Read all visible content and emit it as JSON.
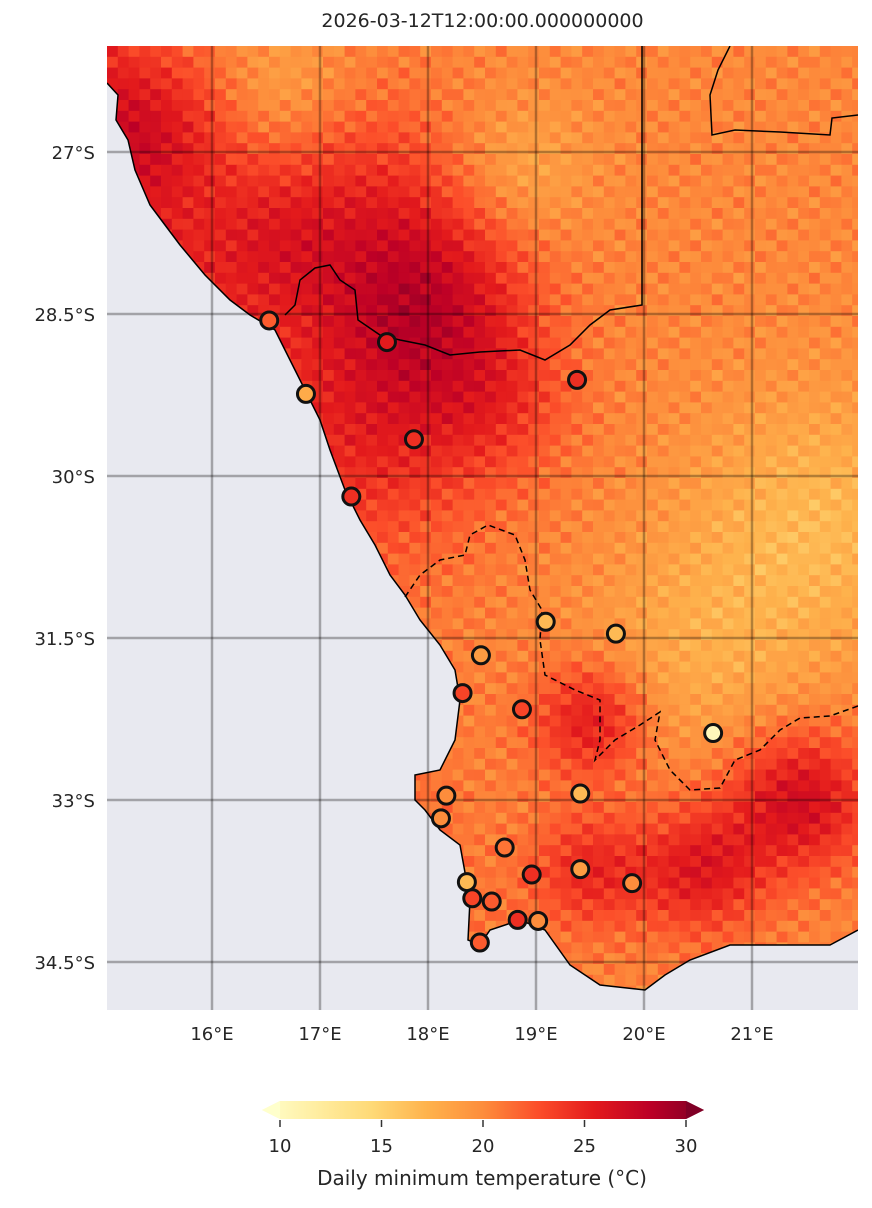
{
  "title": "2026-03-12T12:00:00.000000000",
  "map": {
    "lon_range": [
      15.03,
      21.98
    ],
    "lat_range": [
      -34.95,
      -26.02
    ],
    "x_ticks": [
      {
        "v": 16,
        "label": "16°E"
      },
      {
        "v": 17,
        "label": "17°E"
      },
      {
        "v": 18,
        "label": "18°E"
      },
      {
        "v": 19,
        "label": "19°E"
      },
      {
        "v": 20,
        "label": "20°E"
      },
      {
        "v": 21,
        "label": "21°E"
      }
    ],
    "y_ticks": [
      {
        "v": -27,
        "label": "27°S"
      },
      {
        "v": -28.5,
        "label": "28.5°S"
      },
      {
        "v": -30,
        "label": "30°S"
      },
      {
        "v": -31.5,
        "label": "31.5°S"
      },
      {
        "v": -33,
        "label": "33°S"
      },
      {
        "v": -34.5,
        "label": "34.5°S"
      }
    ],
    "ocean_color": "#e8e9f0",
    "colormap": "YlOrRd",
    "stations": [
      {
        "lon": 16.53,
        "lat": -28.56,
        "value": 22
      },
      {
        "lon": 17.62,
        "lat": -28.76,
        "value": 25
      },
      {
        "lon": 19.38,
        "lat": -29.11,
        "value": 24
      },
      {
        "lon": 16.87,
        "lat": -29.24,
        "value": 18
      },
      {
        "lon": 17.87,
        "lat": -29.66,
        "value": 24
      },
      {
        "lon": 17.29,
        "lat": -30.19,
        "value": 24
      },
      {
        "lon": 19.09,
        "lat": -31.35,
        "value": 17
      },
      {
        "lon": 19.74,
        "lat": -31.46,
        "value": 17
      },
      {
        "lon": 18.49,
        "lat": -31.66,
        "value": 19
      },
      {
        "lon": 18.32,
        "lat": -32.01,
        "value": 23
      },
      {
        "lon": 18.87,
        "lat": -32.16,
        "value": 23
      },
      {
        "lon": 20.64,
        "lat": -32.38,
        "value": 11
      },
      {
        "lon": 19.41,
        "lat": -32.94,
        "value": 17
      },
      {
        "lon": 18.17,
        "lat": -32.96,
        "value": 20
      },
      {
        "lon": 18.12,
        "lat": -33.17,
        "value": 20
      },
      {
        "lon": 18.71,
        "lat": -33.44,
        "value": 21
      },
      {
        "lon": 18.36,
        "lat": -33.76,
        "value": 17
      },
      {
        "lon": 18.96,
        "lat": -33.69,
        "value": 24
      },
      {
        "lon": 19.41,
        "lat": -33.64,
        "value": 19
      },
      {
        "lon": 19.89,
        "lat": -33.77,
        "value": 20
      },
      {
        "lon": 18.41,
        "lat": -33.91,
        "value": 23
      },
      {
        "lon": 18.59,
        "lat": -33.94,
        "value": 22
      },
      {
        "lon": 18.83,
        "lat": -34.11,
        "value": 24
      },
      {
        "lon": 19.02,
        "lat": -34.12,
        "value": 20
      },
      {
        "lon": 18.48,
        "lat": -34.32,
        "value": 22
      }
    ]
  },
  "colorbar": {
    "label": "Daily minimum temperature (°C)",
    "vmin": 10,
    "vmax": 30,
    "ticks": [
      "10",
      "15",
      "20",
      "25",
      "30"
    ],
    "extend": "both"
  }
}
